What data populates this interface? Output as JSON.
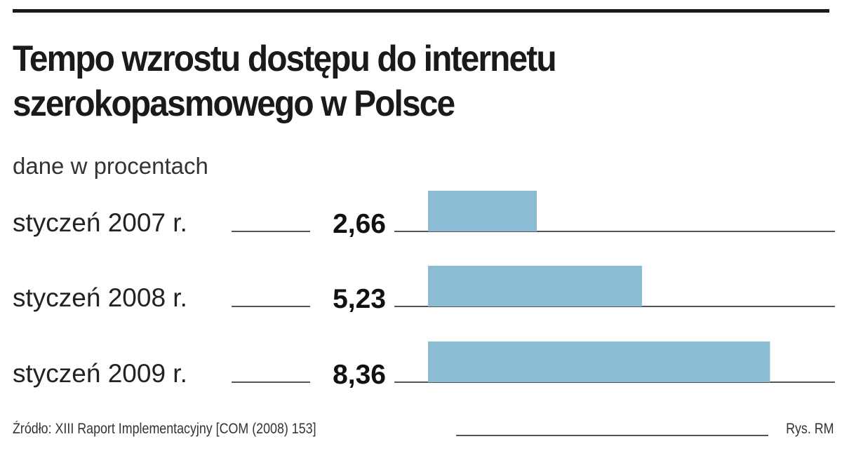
{
  "chart_data": {
    "type": "bar",
    "orientation": "horizontal",
    "title_lines": [
      "Tempo wzrostu dostępu do internetu",
      "szerokopasmowego w Polsce"
    ],
    "subtitle": "dane w procentach",
    "categories": [
      "styczeń 2007 r.",
      "styczeń 2008 r.",
      "styczeń 2009 r."
    ],
    "values": [
      2.66,
      5.23,
      8.36
    ],
    "value_labels": [
      "2,66",
      "5,23",
      "8,36"
    ],
    "xlim": [
      0,
      10
    ],
    "grid": false,
    "bar_color": "#8bbcd4",
    "source": "Źródło: XIII Raport Implementacyjny  [COM (2008) 153]",
    "credit": "Rys. RM"
  }
}
